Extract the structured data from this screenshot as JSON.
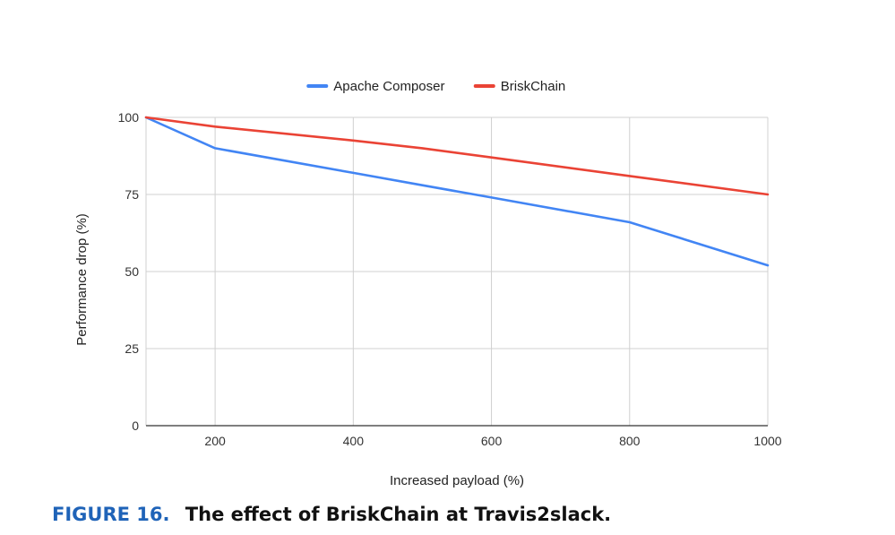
{
  "chart_data": {
    "type": "line",
    "title": "",
    "xlabel": "Increased payload (%)",
    "ylabel": "Performance drop (%)",
    "xlim": [
      100,
      1000
    ],
    "ylim": [
      0,
      100
    ],
    "x_ticks": [
      200,
      400,
      600,
      800,
      1000
    ],
    "y_ticks": [
      0,
      25,
      50,
      75,
      100
    ],
    "grid": true,
    "legend_position": "top-center",
    "series": [
      {
        "name": "Apache Composer",
        "color": "#4285f4",
        "x": [
          100,
          200,
          400,
          500,
          600,
          800,
          1000
        ],
        "y": [
          100,
          90,
          82,
          78,
          74,
          66,
          52
        ]
      },
      {
        "name": "BriskChain",
        "color": "#ea4335",
        "x": [
          100,
          200,
          400,
          500,
          600,
          800,
          1000
        ],
        "y": [
          100,
          97,
          92.5,
          90,
          87,
          81,
          75
        ]
      }
    ]
  },
  "caption": {
    "label": "FIGURE 16.",
    "text": "The effect of BriskChain at Travis2slack."
  }
}
